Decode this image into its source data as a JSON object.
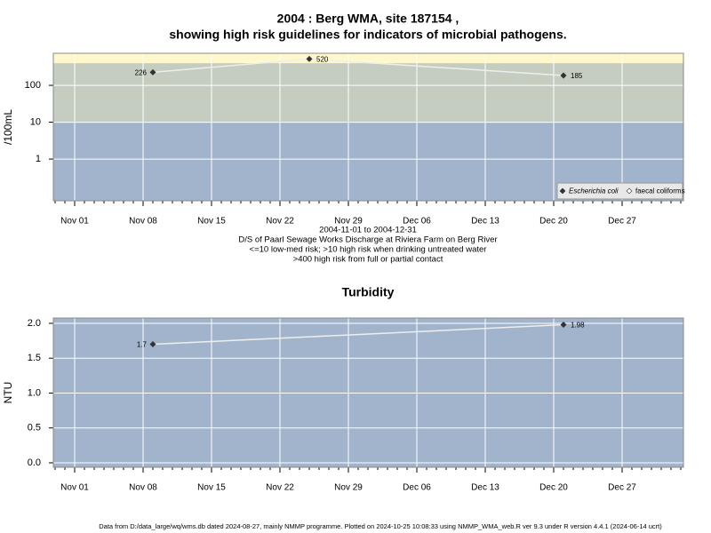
{
  "chart_data": [
    {
      "type": "line",
      "title": "2004 : Berg WMA, site 187154 ,",
      "subtitle": "showing high risk guidelines for indicators of microbial pathogens.",
      "y_label": "/100mL",
      "log_scale": true,
      "grid": true,
      "x": [
        "2004-11-09",
        "2004-11-25",
        "2004-12-21"
      ],
      "series": [
        {
          "name": "Escherichia coli",
          "color": "#333333",
          "line_color": "#eeeeee",
          "values": [
            226,
            520,
            185
          ]
        },
        {
          "name": "faecal coliforms",
          "color": "#ffffff",
          "line_color": "#eeeeee",
          "values": [
            null,
            null,
            null
          ]
        }
      ],
      "guidelines": [
        10,
        400
      ],
      "band_colors": [
        "#a2b4cc",
        "#c4cdc0",
        "#fff8cc"
      ],
      "xlim": [
        "2004-10-30",
        "2004-12-31"
      ],
      "xticks": [
        {
          "value": "2004-11-01",
          "label": "Nov 01"
        },
        {
          "value": "2004-11-08",
          "label": "Nov 08"
        },
        {
          "value": "2004-11-15",
          "label": "Nov 15"
        },
        {
          "value": "2004-11-22",
          "label": "Nov 22"
        },
        {
          "value": "2004-11-29",
          "label": "Nov 29"
        },
        {
          "value": "2004-12-06",
          "label": "Dec 06"
        },
        {
          "value": "2004-12-13",
          "label": "Dec 13"
        },
        {
          "value": "2004-12-20",
          "label": "Dec 20"
        },
        {
          "value": "2004-12-27",
          "label": "Dec 27"
        }
      ],
      "ylim": [
        0.074,
        740
      ],
      "yticks": [
        1,
        10,
        100
      ],
      "legend": "bottom-right",
      "notes": [
        "2004-11-01 to 2004-12-31",
        "D/S of Paarl Sewage Works Discharge at Riviera Farm on Berg River",
        "<=10 low-med risk; >10 high risk when drinking untreated water",
        ">400 high risk from full or partial contact"
      ]
    },
    {
      "type": "line",
      "title": "Turbidity",
      "y_label": "NTU",
      "log_scale": false,
      "grid": true,
      "x": [
        "2004-11-09",
        "2004-12-21"
      ],
      "series": [
        {
          "name": "Turbidity",
          "color": "#333333",
          "line_color": "#eeeeee",
          "values": [
            1.7,
            1.98
          ]
        }
      ],
      "band_colors": [
        "#a2b4cc"
      ],
      "xlim": [
        "2004-10-30",
        "2004-12-31"
      ],
      "xticks": [
        {
          "value": "2004-11-01",
          "label": "Nov 01"
        },
        {
          "value": "2004-11-08",
          "label": "Nov 08"
        },
        {
          "value": "2004-11-15",
          "label": "Nov 15"
        },
        {
          "value": "2004-11-22",
          "label": "Nov 22"
        },
        {
          "value": "2004-11-29",
          "label": "Nov 29"
        },
        {
          "value": "2004-12-06",
          "label": "Dec 06"
        },
        {
          "value": "2004-12-13",
          "label": "Dec 13"
        },
        {
          "value": "2004-12-20",
          "label": "Dec 20"
        },
        {
          "value": "2004-12-27",
          "label": "Dec 27"
        }
      ],
      "ylim": [
        -0.064,
        2.076
      ],
      "yticks": [
        {
          "value": 0,
          "label": "0.0"
        },
        0.5,
        {
          "value": 1,
          "label": "1.0"
        },
        1.5,
        {
          "value": 2,
          "label": "2.0"
        }
      ]
    }
  ],
  "footer": "Data from D:/data_large/wq/wms.db dated 2024-08-27, mainly NMMP programme. Plotted on 2024-10-25 10:08:33 using NMMP_WMA_web.R ver 9.3 under R version 4.4.1 (2024-06-14 ucrt)"
}
